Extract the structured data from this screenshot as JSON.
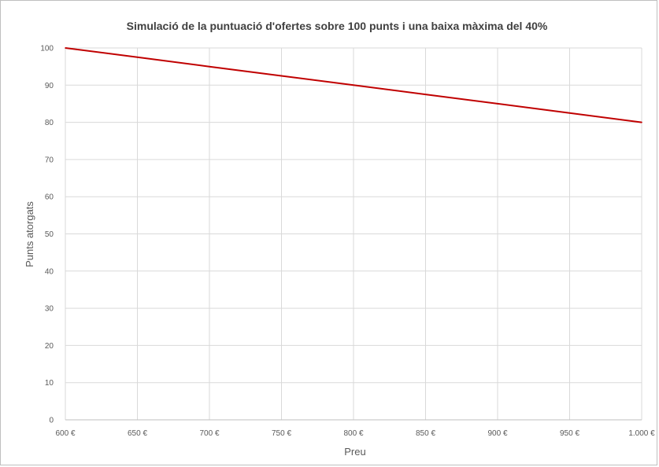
{
  "chart_data": {
    "type": "line",
    "title": "Simulació de la puntuació d'ofertes sobre 100 punts i una baixa màxima del 40%",
    "xlabel": "Preu",
    "ylabel": "Punts atorgats",
    "xlim": [
      600,
      1000
    ],
    "ylim": [
      0,
      100
    ],
    "x_ticks": [
      600,
      650,
      700,
      750,
      800,
      850,
      900,
      950,
      1000
    ],
    "x_tick_labels": [
      "600 €",
      "650 €",
      "700 €",
      "750 €",
      "800 €",
      "850 €",
      "900 €",
      "950 €",
      "1.000 €"
    ],
    "y_ticks": [
      0,
      10,
      20,
      30,
      40,
      50,
      60,
      70,
      80,
      90,
      100
    ],
    "y_tick_labels": [
      "0",
      "10",
      "20",
      "30",
      "40",
      "50",
      "60",
      "70",
      "80",
      "90",
      "100"
    ],
    "grid": true,
    "legend": "none",
    "series": [
      {
        "color": "#c00000",
        "x": [
          600,
          650,
          700,
          750,
          800,
          850,
          900,
          950,
          1000
        ],
        "y": [
          100,
          97.5,
          95,
          92.5,
          90,
          87.5,
          85,
          82.5,
          80
        ]
      }
    ]
  }
}
